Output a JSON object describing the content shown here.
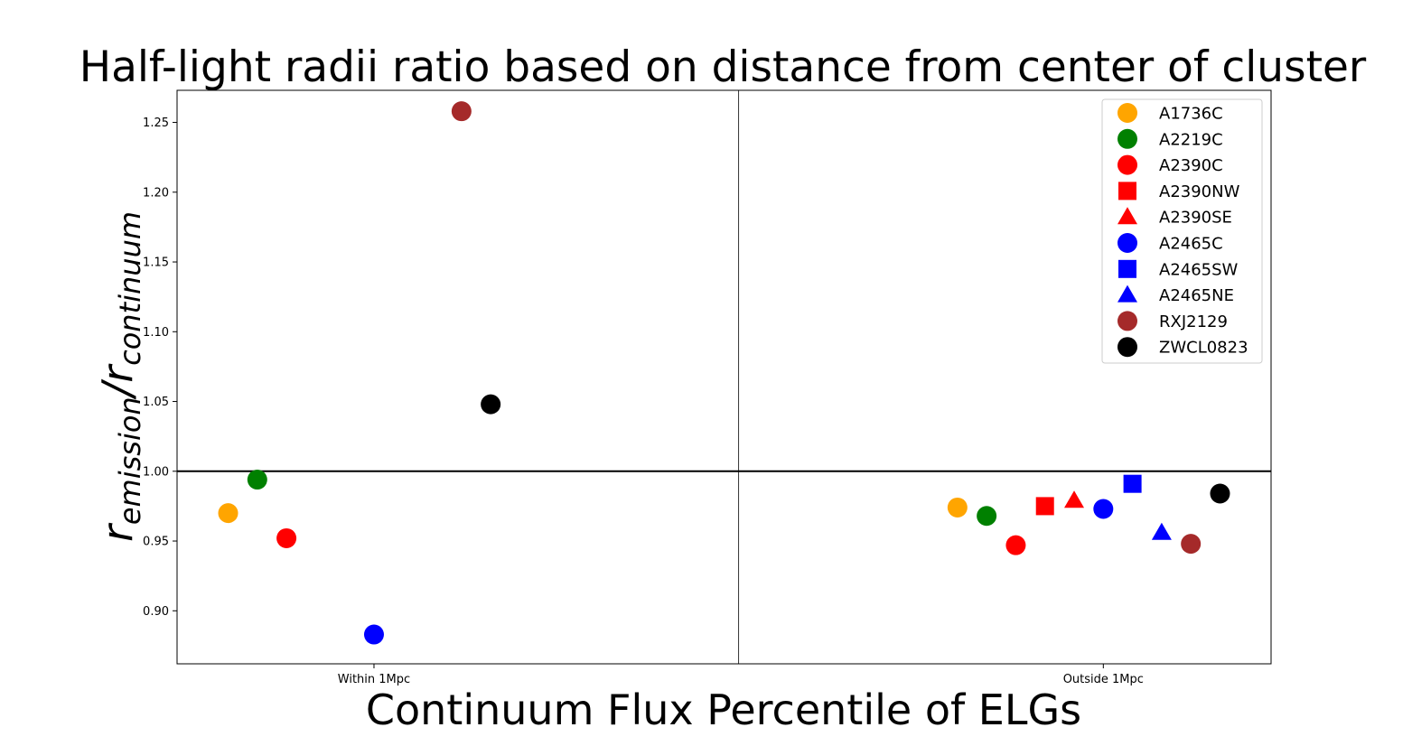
{
  "chart_data": {
    "type": "scatter",
    "title": "Half-light radii ratio based on distance from center of cluster",
    "xlabel": "Continuum Flux Percentile of ELGs",
    "ylabel": {
      "main": "r",
      "sub1": "emission",
      "slash": "/",
      "sub2": "continuum"
    },
    "categories": [
      "Within 1Mpc",
      "Outside 1Mpc"
    ],
    "yticks": [
      "0.90",
      "0.95",
      "1.00",
      "1.05",
      "1.10",
      "1.15",
      "1.20",
      "1.25"
    ],
    "ytick_values": [
      0.9,
      0.95,
      1.0,
      1.05,
      1.1,
      1.15,
      1.2,
      1.25
    ],
    "ylim": [
      0.862,
      1.273
    ],
    "xlim": [
      -0.27,
      1.23
    ],
    "reference_line": 1.0,
    "divider_x": 0.5,
    "legend_position": "upper-right",
    "grid": false,
    "series": [
      {
        "name": "A1736C",
        "color": "#ffa500",
        "marker": "circle",
        "points": [
          {
            "x": -0.2,
            "y": 0.97
          },
          {
            "x": 0.8,
            "y": 0.974
          }
        ]
      },
      {
        "name": "A2219C",
        "color": "#008000",
        "marker": "circle",
        "points": [
          {
            "x": -0.16,
            "y": 0.994
          },
          {
            "x": 0.84,
            "y": 0.968
          }
        ]
      },
      {
        "name": "A2390C",
        "color": "#ff0000",
        "marker": "circle",
        "points": [
          {
            "x": -0.12,
            "y": 0.952
          },
          {
            "x": 0.88,
            "y": 0.947
          }
        ]
      },
      {
        "name": "A2390NW",
        "color": "#ff0000",
        "marker": "square",
        "points": [
          {
            "x": 0.92,
            "y": 0.975
          }
        ]
      },
      {
        "name": "A2390SE",
        "color": "#ff0000",
        "marker": "triangle",
        "points": [
          {
            "x": 0.96,
            "y": 0.979
          }
        ]
      },
      {
        "name": "A2465C",
        "color": "#0000ff",
        "marker": "circle",
        "points": [
          {
            "x": 0.0,
            "y": 0.883
          },
          {
            "x": 1.0,
            "y": 0.973
          }
        ]
      },
      {
        "name": "A2465SW",
        "color": "#0000ff",
        "marker": "square",
        "points": [
          {
            "x": 1.04,
            "y": 0.991
          }
        ]
      },
      {
        "name": "A2465NE",
        "color": "#0000ff",
        "marker": "triangle",
        "points": [
          {
            "x": 1.08,
            "y": 0.956
          }
        ]
      },
      {
        "name": "RXJ2129",
        "color": "#a52a2a",
        "marker": "circle",
        "points": [
          {
            "x": 0.12,
            "y": 1.258
          },
          {
            "x": 1.12,
            "y": 0.948
          }
        ]
      },
      {
        "name": "ZWCL0823",
        "color": "#000000",
        "marker": "circle",
        "points": [
          {
            "x": 0.16,
            "y": 1.048
          },
          {
            "x": 1.16,
            "y": 0.984
          }
        ]
      }
    ]
  }
}
